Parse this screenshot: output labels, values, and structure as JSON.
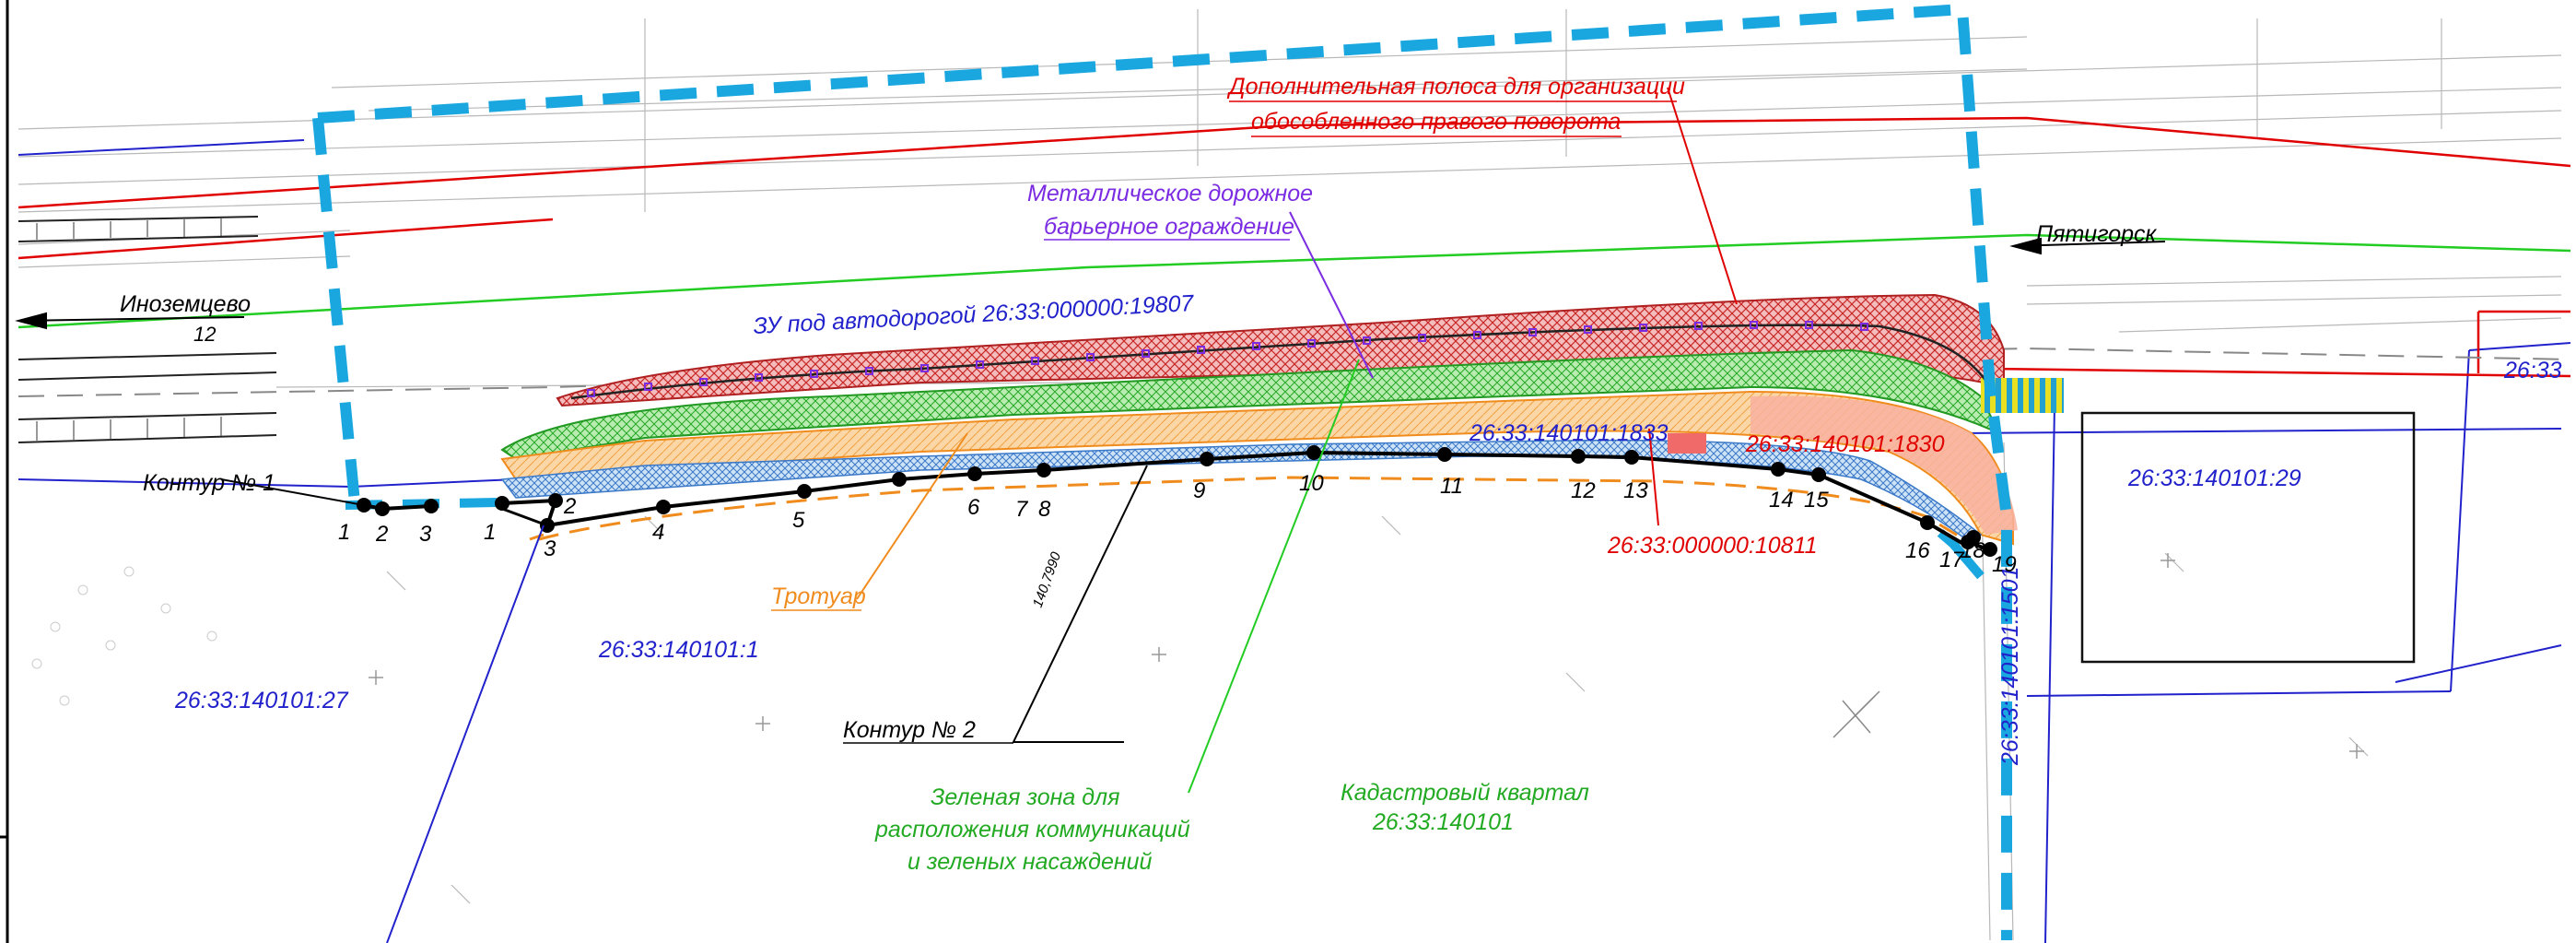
{
  "road_labels": {
    "inozemtsevo": "Иноземцево",
    "pyatigorsk": "Пятигорск",
    "road_number": "12"
  },
  "annotations": {
    "extra_lane_line1": "Дополнительная полоса для организации",
    "extra_lane_line2": "обособленного правого поворота",
    "barrier_line1": "Металлическое дорожное",
    "barrier_line2": "барьерное ограждение",
    "plot_under_road": "ЗУ под автодорогой 26:33:000000:19807",
    "contour1": "Контур № 1",
    "contour2": "Контур № 2",
    "sidewalk": "Тротуар",
    "green_line1": "Зеленая зона для",
    "green_line2": "расположения коммуникаций",
    "green_line3": "и зеленых насаждений",
    "quarter_line1": "Кадастровый квартал",
    "quarter_line2": "26:33:140101"
  },
  "parcels": {
    "p1833": "26:33:140101:1833",
    "p1830": "26:33:140101:1830",
    "p10811": "26:33:000000:10811",
    "p1": "26:33:140101:1",
    "p27": "26:33:140101:27",
    "p29": "26:33:140101:29",
    "p1501": "26:33:140101:1501",
    "p26_33": "26:33"
  },
  "dimension_label": "140,7990",
  "contour1_points": [
    "1",
    "2",
    "3"
  ],
  "contour2_points": [
    "1",
    "2",
    "3",
    "4",
    "5",
    "6",
    "7",
    "8",
    "9",
    "10",
    "11",
    "12",
    "13",
    "14",
    "15",
    "16",
    "17",
    "18",
    "19"
  ],
  "colors": {
    "blue_boundary": "#1aa7e0",
    "red_lines": "#e00000",
    "green_line": "#22cc22",
    "orange": "#f08c1e",
    "purple": "#8a2be2",
    "parcel_blue": "#1a1acc",
    "hatch_green": "#2bbf2b",
    "hatch_red": "#d23030"
  }
}
